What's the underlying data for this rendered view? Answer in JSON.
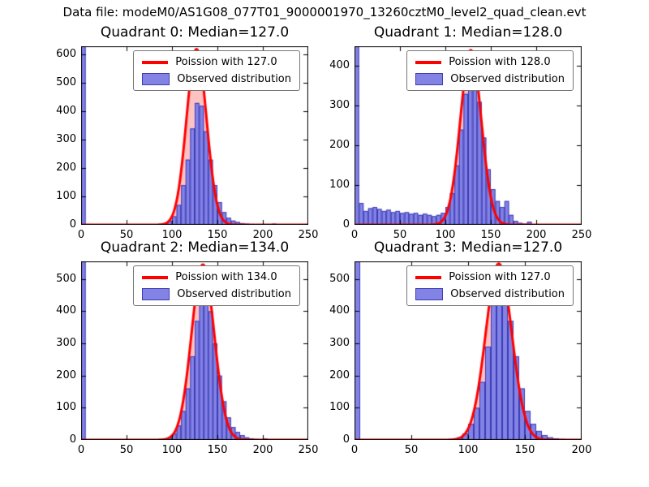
{
  "figure": {
    "suptitle": "Data file: modeM0/AS1G08_077T01_9000001970_13260cztM0_level2_quad_clean.evt"
  },
  "colors": {
    "bar_fill": "#8383e6",
    "bar_edge": "#3c3cb4",
    "fit_line": "#ff0000",
    "fit_fill": "rgba(255,80,80,0.35)",
    "axis": "#000000",
    "legend_border": "#777777",
    "background": "#ffffff"
  },
  "chart_data": [
    {
      "type": "bar",
      "title": "Quadrant 0: Median=127.0",
      "legend": [
        "Poission with 127.0",
        "Observed distribution"
      ],
      "xlim": [
        0,
        250
      ],
      "ylim": [
        0,
        630
      ],
      "xticks": [
        0,
        50,
        100,
        150,
        200,
        250
      ],
      "yticks": [
        0,
        100,
        200,
        300,
        400,
        500,
        600
      ],
      "bin_start": 0,
      "bin_width": 5,
      "heights": [
        630,
        3,
        1,
        1,
        1,
        1,
        1,
        1,
        0,
        0,
        0,
        1,
        1,
        1,
        1,
        1,
        2,
        3,
        6,
        14,
        30,
        70,
        140,
        230,
        340,
        430,
        420,
        330,
        230,
        140,
        80,
        45,
        25,
        15,
        10,
        6,
        4,
        3,
        2,
        2,
        1,
        1,
        4,
        0,
        0,
        0,
        0,
        0,
        0,
        0
      ],
      "fit": {
        "label": "Poission with 127.0",
        "mean": 127,
        "sigma": 11,
        "amplitude": 620
      }
    },
    {
      "type": "bar",
      "title": "Quadrant 1: Median=128.0",
      "legend": [
        "Poission with 128.0",
        "Observed distribution"
      ],
      "xlim": [
        0,
        250
      ],
      "ylim": [
        0,
        450
      ],
      "xticks": [
        0,
        50,
        100,
        150,
        200,
        250
      ],
      "yticks": [
        0,
        100,
        200,
        300,
        400
      ],
      "bin_start": 0,
      "bin_width": 5,
      "heights": [
        450,
        55,
        35,
        42,
        45,
        40,
        35,
        38,
        32,
        35,
        30,
        32,
        28,
        30,
        25,
        28,
        25,
        22,
        25,
        30,
        45,
        80,
        150,
        240,
        330,
        400,
        390,
        310,
        220,
        140,
        90,
        60,
        45,
        60,
        25,
        10,
        5,
        3,
        8,
        2,
        0,
        0,
        0,
        0,
        0,
        0,
        0,
        0,
        0,
        0
      ],
      "fit": {
        "label": "Poission with 128.0",
        "mean": 128,
        "sigma": 11.5,
        "amplitude": 440
      }
    },
    {
      "type": "bar",
      "title": "Quadrant 2: Median=134.0",
      "legend": [
        "Poission with 134.0",
        "Observed distribution"
      ],
      "xlim": [
        0,
        250
      ],
      "ylim": [
        0,
        555
      ],
      "xticks": [
        0,
        50,
        100,
        150,
        200,
        250
      ],
      "yticks": [
        0,
        100,
        200,
        300,
        400,
        500
      ],
      "bin_start": 0,
      "bin_width": 5,
      "heights": [
        555,
        2,
        1,
        1,
        1,
        1,
        1,
        1,
        1,
        1,
        1,
        1,
        1,
        1,
        1,
        1,
        1,
        2,
        4,
        8,
        20,
        45,
        90,
        160,
        260,
        370,
        470,
        480,
        400,
        300,
        200,
        120,
        70,
        40,
        25,
        15,
        8,
        5,
        3,
        2,
        4,
        1,
        0,
        0,
        0,
        0,
        0,
        0,
        0,
        0
      ],
      "fit": {
        "label": "Poission with 134.0",
        "mean": 134,
        "sigma": 12.5,
        "amplitude": 545
      }
    },
    {
      "type": "bar",
      "title": "Quadrant 3: Median=127.0",
      "legend": [
        "Poission with 127.0",
        "Observed distribution"
      ],
      "xlim": [
        0,
        200
      ],
      "ylim": [
        0,
        555
      ],
      "xticks": [
        0,
        50,
        100,
        150,
        200
      ],
      "yticks": [
        0,
        100,
        200,
        300,
        400,
        500
      ],
      "bin_start": 0,
      "bin_width": 5,
      "heights": [
        555,
        1,
        1,
        0,
        1,
        0,
        1,
        1,
        1,
        1,
        1,
        1,
        1,
        1,
        1,
        1,
        1,
        3,
        8,
        20,
        50,
        100,
        180,
        290,
        420,
        500,
        460,
        370,
        260,
        160,
        90,
        50,
        28,
        15,
        8,
        5,
        3,
        2,
        1,
        0
      ],
      "fit": {
        "label": "Poission with 127.0",
        "mean": 127,
        "sigma": 11.5,
        "amplitude": 548
      }
    }
  ]
}
